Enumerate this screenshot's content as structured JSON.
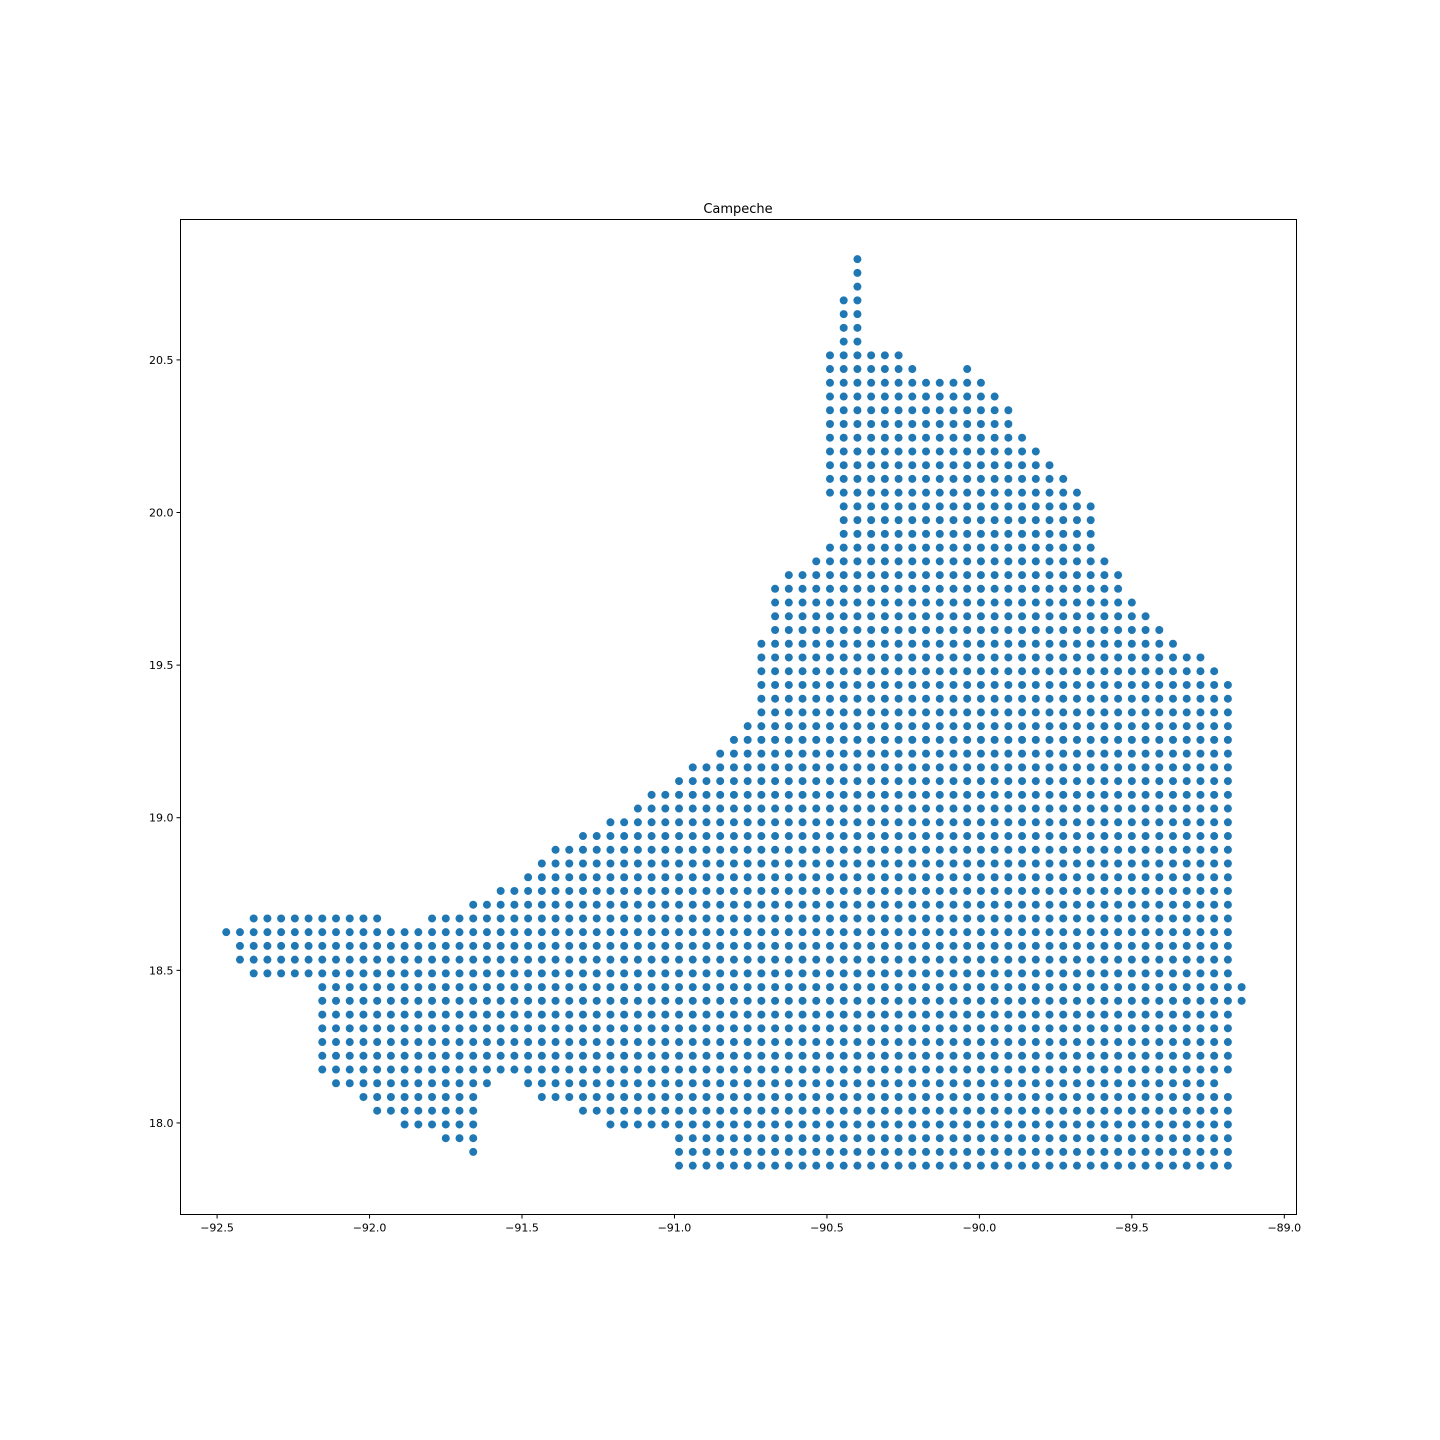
{
  "chart_data": {
    "type": "scatter",
    "title": "Campeche",
    "xlabel": "",
    "ylabel": "",
    "xlim": [
      -92.62,
      -88.96
    ],
    "ylim": [
      17.7,
      20.96
    ],
    "grid": false,
    "legend": "none",
    "marker_color": "#1f77b4",
    "x_ticks": [
      -92.5,
      -92.0,
      -91.5,
      -91.0,
      -90.5,
      -90.0,
      -89.5,
      -89.0
    ],
    "x_tick_labels": [
      "−92.5",
      "−92.0",
      "−91.5",
      "−91.0",
      "−90.5",
      "−90.0",
      "−89.5",
      "−89.0"
    ],
    "y_ticks": [
      18.0,
      18.5,
      19.0,
      19.5,
      20.0,
      20.5
    ],
    "y_tick_labels": [
      "18.0",
      "18.5",
      "19.0",
      "19.5",
      "20.0",
      "20.5"
    ],
    "grid_step": {
      "x": 0.045,
      "y": 0.045
    },
    "grid_origin": {
      "x": -90.4,
      "y": 18.4
    },
    "rows": [
      {
        "y": 20.83,
        "x_ranges": [
          [
            -90.4,
            -90.4
          ]
        ]
      },
      {
        "y": 20.785,
        "x_ranges": [
          [
            -90.4,
            -90.4
          ]
        ]
      },
      {
        "y": 20.74,
        "x_ranges": [
          [
            -90.4,
            -90.4
          ]
        ]
      },
      {
        "y": 20.695,
        "x_ranges": [
          [
            -90.445,
            -90.4
          ]
        ]
      },
      {
        "y": 20.65,
        "x_ranges": [
          [
            -90.445,
            -90.4
          ]
        ]
      },
      {
        "y": 20.605,
        "x_ranges": [
          [
            -90.445,
            -90.4
          ]
        ]
      },
      {
        "y": 20.56,
        "x_ranges": [
          [
            -90.445,
            -90.4
          ]
        ]
      },
      {
        "y": 20.515,
        "x_ranges": [
          [
            -90.49,
            -90.265
          ]
        ]
      },
      {
        "y": 20.47,
        "x_ranges": [
          [
            -90.49,
            -90.22
          ],
          [
            -90.04,
            -90.04
          ]
        ]
      },
      {
        "y": 20.425,
        "x_ranges": [
          [
            -90.49,
            -89.995
          ]
        ]
      },
      {
        "y": 20.38,
        "x_ranges": [
          [
            -90.49,
            -89.95
          ]
        ]
      },
      {
        "y": 20.335,
        "x_ranges": [
          [
            -90.49,
            -89.905
          ]
        ]
      },
      {
        "y": 20.29,
        "x_ranges": [
          [
            -90.49,
            -89.905
          ]
        ]
      },
      {
        "y": 20.245,
        "x_ranges": [
          [
            -90.49,
            -89.86
          ]
        ]
      },
      {
        "y": 20.2,
        "x_ranges": [
          [
            -90.49,
            -89.815
          ]
        ]
      },
      {
        "y": 20.155,
        "x_ranges": [
          [
            -90.49,
            -89.77
          ]
        ]
      },
      {
        "y": 20.11,
        "x_ranges": [
          [
            -90.49,
            -89.725
          ]
        ]
      },
      {
        "y": 20.065,
        "x_ranges": [
          [
            -90.49,
            -89.68
          ]
        ]
      },
      {
        "y": 20.02,
        "x_ranges": [
          [
            -90.445,
            -89.635
          ]
        ]
      },
      {
        "y": 19.975,
        "x_ranges": [
          [
            -90.445,
            -89.635
          ]
        ]
      },
      {
        "y": 19.93,
        "x_ranges": [
          [
            -90.445,
            -89.635
          ]
        ]
      },
      {
        "y": 19.885,
        "x_ranges": [
          [
            -90.49,
            -89.635
          ]
        ]
      },
      {
        "y": 19.84,
        "x_ranges": [
          [
            -90.535,
            -89.59
          ]
        ]
      },
      {
        "y": 19.795,
        "x_ranges": [
          [
            -90.625,
            -89.545
          ]
        ]
      },
      {
        "y": 19.75,
        "x_ranges": [
          [
            -90.67,
            -89.545
          ]
        ]
      },
      {
        "y": 19.705,
        "x_ranges": [
          [
            -90.67,
            -89.5
          ]
        ]
      },
      {
        "y": 19.66,
        "x_ranges": [
          [
            -90.67,
            -89.455
          ]
        ]
      },
      {
        "y": 19.615,
        "x_ranges": [
          [
            -90.67,
            -89.41
          ]
        ]
      },
      {
        "y": 19.57,
        "x_ranges": [
          [
            -90.715,
            -89.365
          ]
        ]
      },
      {
        "y": 19.525,
        "x_ranges": [
          [
            -90.715,
            -89.275
          ]
        ]
      },
      {
        "y": 19.48,
        "x_ranges": [
          [
            -90.715,
            -89.23
          ]
        ]
      },
      {
        "y": 19.435,
        "x_ranges": [
          [
            -90.715,
            -89.185
          ]
        ]
      },
      {
        "y": 19.39,
        "x_ranges": [
          [
            -90.715,
            -89.185
          ]
        ]
      },
      {
        "y": 19.345,
        "x_ranges": [
          [
            -90.715,
            -89.185
          ]
        ]
      },
      {
        "y": 19.3,
        "x_ranges": [
          [
            -90.76,
            -89.185
          ]
        ]
      },
      {
        "y": 19.255,
        "x_ranges": [
          [
            -90.805,
            -89.185
          ]
        ]
      },
      {
        "y": 19.21,
        "x_ranges": [
          [
            -90.85,
            -89.185
          ]
        ]
      },
      {
        "y": 19.165,
        "x_ranges": [
          [
            -90.94,
            -89.185
          ]
        ]
      },
      {
        "y": 19.12,
        "x_ranges": [
          [
            -90.985,
            -89.185
          ]
        ]
      },
      {
        "y": 19.075,
        "x_ranges": [
          [
            -91.075,
            -89.185
          ]
        ]
      },
      {
        "y": 19.03,
        "x_ranges": [
          [
            -91.12,
            -89.185
          ]
        ]
      },
      {
        "y": 18.985,
        "x_ranges": [
          [
            -91.21,
            -89.185
          ]
        ]
      },
      {
        "y": 18.94,
        "x_ranges": [
          [
            -91.3,
            -89.185
          ]
        ]
      },
      {
        "y": 18.895,
        "x_ranges": [
          [
            -91.39,
            -89.185
          ]
        ]
      },
      {
        "y": 18.85,
        "x_ranges": [
          [
            -91.435,
            -89.185
          ]
        ]
      },
      {
        "y": 18.805,
        "x_ranges": [
          [
            -91.48,
            -89.185
          ]
        ]
      },
      {
        "y": 18.76,
        "x_ranges": [
          [
            -91.57,
            -89.185
          ]
        ]
      },
      {
        "y": 18.715,
        "x_ranges": [
          [
            -91.66,
            -89.185
          ]
        ]
      },
      {
        "y": 18.67,
        "x_ranges": [
          [
            -92.38,
            -91.975
          ],
          [
            -91.795,
            -89.185
          ]
        ]
      },
      {
        "y": 18.625,
        "x_ranges": [
          [
            -92.47,
            -92.47
          ],
          [
            -92.425,
            -89.185
          ]
        ]
      },
      {
        "y": 18.58,
        "x_ranges": [
          [
            -92.425,
            -89.185
          ]
        ]
      },
      {
        "y": 18.535,
        "x_ranges": [
          [
            -92.425,
            -89.185
          ]
        ]
      },
      {
        "y": 18.49,
        "x_ranges": [
          [
            -92.38,
            -89.185
          ]
        ]
      },
      {
        "y": 18.445,
        "x_ranges": [
          [
            -92.155,
            -89.14
          ]
        ]
      },
      {
        "y": 18.4,
        "x_ranges": [
          [
            -92.155,
            -89.14
          ]
        ]
      },
      {
        "y": 18.355,
        "x_ranges": [
          [
            -92.155,
            -89.185
          ]
        ]
      },
      {
        "y": 18.31,
        "x_ranges": [
          [
            -92.155,
            -89.185
          ]
        ]
      },
      {
        "y": 18.265,
        "x_ranges": [
          [
            -92.155,
            -89.185
          ]
        ]
      },
      {
        "y": 18.22,
        "x_ranges": [
          [
            -92.155,
            -89.185
          ]
        ]
      },
      {
        "y": 18.175,
        "x_ranges": [
          [
            -92.155,
            -91.57
          ],
          [
            -91.525,
            -89.185
          ]
        ]
      },
      {
        "y": 18.13,
        "x_ranges": [
          [
            -92.11,
            -91.615
          ],
          [
            -91.48,
            -89.23
          ]
        ]
      },
      {
        "y": 18.085,
        "x_ranges": [
          [
            -92.02,
            -91.66
          ],
          [
            -91.435,
            -89.185
          ]
        ]
      },
      {
        "y": 18.04,
        "x_ranges": [
          [
            -91.975,
            -91.66
          ],
          [
            -91.3,
            -89.185
          ]
        ]
      },
      {
        "y": 17.995,
        "x_ranges": [
          [
            -91.885,
            -91.66
          ],
          [
            -91.21,
            -90.985
          ],
          [
            -90.94,
            -89.185
          ]
        ]
      },
      {
        "y": 17.95,
        "x_ranges": [
          [
            -91.75,
            -91.66
          ],
          [
            -90.985,
            -89.185
          ]
        ]
      },
      {
        "y": 17.905,
        "x_ranges": [
          [
            -91.66,
            -91.66
          ],
          [
            -90.985,
            -89.185
          ]
        ]
      },
      {
        "y": 17.86,
        "x_ranges": [
          [
            -90.985,
            -89.185
          ]
        ]
      }
    ]
  }
}
